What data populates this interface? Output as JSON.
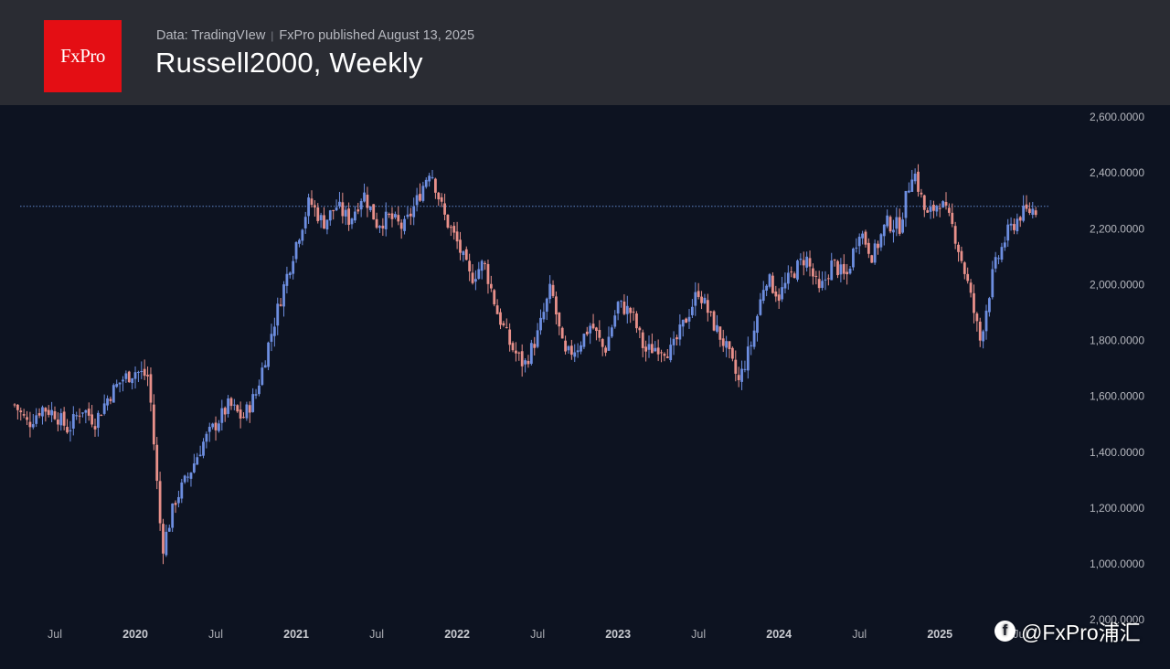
{
  "header": {
    "logo_text": "FxPro",
    "source_text": "Data: TradingVIew",
    "published_text": "FxPro published August 13, 2025",
    "title": "Russell2000, Weekly"
  },
  "watermark": {
    "icon": "social-f-icon",
    "icon_glyph": "f",
    "text": "@FxPro浦汇"
  },
  "chart_data": {
    "type": "candlestick",
    "title": "Russell2000, Weekly",
    "interval": "weekly",
    "ylim": [
      900,
      2620
    ],
    "y_ticks": [
      {
        "value": 1000,
        "label": "1,000.0000"
      },
      {
        "value": 1200,
        "label": "1,200.0000"
      },
      {
        "value": 1400,
        "label": "1,400.0000"
      },
      {
        "value": 1600,
        "label": "1,600.0000"
      },
      {
        "value": 1800,
        "label": "1,800.0000"
      },
      {
        "value": 2000,
        "label": "2,000.0000"
      },
      {
        "value": 2200,
        "label": "2,200.0000"
      },
      {
        "value": 2400,
        "label": "2,400.0000"
      },
      {
        "value": 2600,
        "label": "2,600.0000"
      }
    ],
    "partial_tick_label": "2,000.0000",
    "x_range": [
      "2019-04",
      "2025-08"
    ],
    "x_ticks": [
      {
        "date": "2019-07",
        "label": "Jul"
      },
      {
        "date": "2020-01",
        "label": "2020"
      },
      {
        "date": "2020-07",
        "label": "Jul"
      },
      {
        "date": "2021-01",
        "label": "2021"
      },
      {
        "date": "2021-07",
        "label": "Jul"
      },
      {
        "date": "2022-01",
        "label": "2022"
      },
      {
        "date": "2022-07",
        "label": "Jul"
      },
      {
        "date": "2023-01",
        "label": "2023"
      },
      {
        "date": "2023-07",
        "label": "Jul"
      },
      {
        "date": "2024-01",
        "label": "2024"
      },
      {
        "date": "2024-07",
        "label": "Jul"
      },
      {
        "date": "2025-01",
        "label": "2025"
      },
      {
        "date": "2025-07",
        "label": "Jul"
      }
    ],
    "reference_line": 2280,
    "colors": {
      "up": "#6d8ee0",
      "down": "#e8908a",
      "reference": "#5f84c9"
    },
    "close_path": [
      [
        "2019-04",
        1570
      ],
      [
        "2019-05",
        1500
      ],
      [
        "2019-06",
        1560
      ],
      [
        "2019-07",
        1540
      ],
      [
        "2019-08",
        1480
      ],
      [
        "2019-09",
        1560
      ],
      [
        "2019-10",
        1510
      ],
      [
        "2019-11",
        1600
      ],
      [
        "2019-12",
        1660
      ],
      [
        "2020-01",
        1690
      ],
      [
        "2020-02",
        1670
      ],
      [
        "2020-03",
        1050
      ],
      [
        "2020-04",
        1230
      ],
      [
        "2020-05",
        1320
      ],
      [
        "2020-06",
        1430
      ],
      [
        "2020-07",
        1500
      ],
      [
        "2020-08",
        1570
      ],
      [
        "2020-09",
        1520
      ],
      [
        "2020-10",
        1610
      ],
      [
        "2020-11",
        1800
      ],
      [
        "2020-12",
        1980
      ],
      [
        "2021-01",
        2150
      ],
      [
        "2021-02",
        2300
      ],
      [
        "2021-03",
        2220
      ],
      [
        "2021-04",
        2280
      ],
      [
        "2021-05",
        2230
      ],
      [
        "2021-06",
        2330
      ],
      [
        "2021-07",
        2220
      ],
      [
        "2021-08",
        2240
      ],
      [
        "2021-09",
        2200
      ],
      [
        "2021-10",
        2300
      ],
      [
        "2021-11",
        2420
      ],
      [
        "2021-12",
        2250
      ],
      [
        "2022-01",
        2150
      ],
      [
        "2022-02",
        2020
      ],
      [
        "2022-03",
        2080
      ],
      [
        "2022-04",
        1900
      ],
      [
        "2022-05",
        1780
      ],
      [
        "2022-06",
        1710
      ],
      [
        "2022-07",
        1820
      ],
      [
        "2022-08",
        1990
      ],
      [
        "2022-09",
        1740
      ],
      [
        "2022-10",
        1780
      ],
      [
        "2022-11",
        1860
      ],
      [
        "2022-12",
        1760
      ],
      [
        "2023-01",
        1930
      ],
      [
        "2023-02",
        1900
      ],
      [
        "2023-03",
        1760
      ],
      [
        "2023-04",
        1780
      ],
      [
        "2023-05",
        1760
      ],
      [
        "2023-06",
        1870
      ],
      [
        "2023-07",
        1980
      ],
      [
        "2023-08",
        1870
      ],
      [
        "2023-09",
        1780
      ],
      [
        "2023-10",
        1650
      ],
      [
        "2023-11",
        1800
      ],
      [
        "2023-12",
        2030
      ],
      [
        "2024-01",
        1960
      ],
      [
        "2024-02",
        2040
      ],
      [
        "2024-03",
        2100
      ],
      [
        "2024-04",
        1970
      ],
      [
        "2024-05",
        2080
      ],
      [
        "2024-06",
        2020
      ],
      [
        "2024-07",
        2200
      ],
      [
        "2024-08",
        2100
      ],
      [
        "2024-09",
        2220
      ],
      [
        "2024-10",
        2210
      ],
      [
        "2024-11",
        2420
      ],
      [
        "2024-12",
        2240
      ],
      [
        "2025-01",
        2300
      ],
      [
        "2025-02",
        2200
      ],
      [
        "2025-03",
        2020
      ],
      [
        "2025-04",
        1800
      ],
      [
        "2025-05",
        2050
      ],
      [
        "2025-06",
        2180
      ],
      [
        "2025-07",
        2250
      ],
      [
        "2025-08",
        2270
      ]
    ]
  }
}
